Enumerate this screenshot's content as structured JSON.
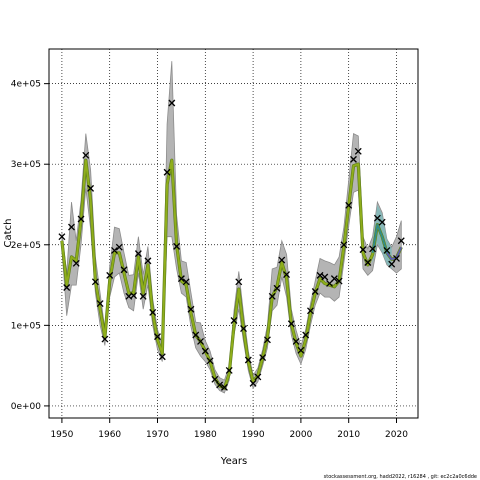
{
  "chart_data": {
    "type": "line",
    "xlabel": "Years",
    "ylabel": "Catch",
    "xlim": [
      1947.3,
      2024.5
    ],
    "ylim": [
      -15000,
      443000
    ],
    "xticks": [
      1950,
      1960,
      1970,
      1980,
      1990,
      2000,
      2010,
      2020
    ],
    "yticks": [
      0,
      100000,
      200000,
      300000,
      400000
    ],
    "ytick_labels": [
      "0e+00",
      "1e+05",
      "2e+05",
      "3e+05",
      "4e+05"
    ],
    "grid": true,
    "grid_style": "dotted",
    "colors": {
      "band": "#b4b4b4",
      "band_line": "#8c8c8c",
      "estimate": "#8fae1b",
      "estimate_shadow": "#5a7a1a",
      "recent_band": "#7fb8b8",
      "recent_line": "#2e8b8b",
      "forecast_line": "#5b5bb0",
      "observed": "#000000"
    },
    "years": [
      1950,
      1951,
      1952,
      1953,
      1954,
      1955,
      1956,
      1957,
      1958,
      1959,
      1960,
      1961,
      1962,
      1963,
      1964,
      1965,
      1966,
      1967,
      1968,
      1969,
      1970,
      1971,
      1972,
      1973,
      1974,
      1975,
      1976,
      1977,
      1978,
      1979,
      1980,
      1981,
      1982,
      1983,
      1984,
      1985,
      1986,
      1987,
      1988,
      1989,
      1990,
      1991,
      1992,
      1993,
      1994,
      1995,
      1996,
      1997,
      1998,
      1999,
      2000,
      2001,
      2002,
      2003,
      2004,
      2005,
      2006,
      2007,
      2008,
      2009,
      2010,
      2011,
      2012,
      2013,
      2014,
      2015,
      2016,
      2017,
      2018,
      2019,
      2020,
      2021
    ],
    "series": [
      {
        "role": "estimate",
        "values": [
          205000,
          150000,
          185000,
          180000,
          230000,
          305000,
          255000,
          155000,
          120000,
          85000,
          155000,
          190000,
          190000,
          165000,
          140000,
          140000,
          185000,
          140000,
          175000,
          115000,
          82000,
          65000,
          275000,
          305000,
          200000,
          155000,
          150000,
          115000,
          88000,
          80000,
          68000,
          55000,
          35000,
          25000,
          22000,
          40000,
          100000,
          145000,
          95000,
          55000,
          30000,
          38000,
          60000,
          85000,
          135000,
          148000,
          178000,
          158000,
          102000,
          78000,
          62000,
          82000,
          115000,
          140000,
          158000,
          152000,
          150000,
          148000,
          155000,
          198000,
          248000,
          298000,
          300000,
          190000,
          175000,
          188000,
          225000,
          210000,
          190000,
          182000,
          184000,
          197000
        ]
      },
      {
        "role": "upper_bound",
        "values": [
          215000,
          165000,
          253000,
          205000,
          255000,
          338000,
          293000,
          185000,
          140000,
          95000,
          173000,
          222000,
          220000,
          190000,
          162000,
          163000,
          210000,
          163000,
          198000,
          133000,
          95000,
          75000,
          350000,
          428000,
          237000,
          180000,
          178000,
          140000,
          104000,
          103000,
          81000,
          68000,
          45000,
          35000,
          32000,
          50000,
          118000,
          167000,
          115000,
          68000,
          38000,
          47000,
          70000,
          100000,
          170000,
          172000,
          205000,
          188000,
          120000,
          94000,
          74000,
          95000,
          127000,
          155000,
          183000,
          180000,
          178000,
          175000,
          185000,
          222000,
          280000,
          338000,
          335000,
          210000,
          195000,
          210000,
          253000,
          240000,
          207000,
          197000,
          210000,
          230000
        ]
      },
      {
        "role": "lower_bound",
        "values": [
          195000,
          112000,
          150000,
          150000,
          200000,
          270000,
          220000,
          140000,
          100000,
          75000,
          135000,
          160000,
          165000,
          140000,
          122000,
          118000,
          165000,
          120000,
          150000,
          100000,
          70000,
          55000,
          210000,
          210000,
          170000,
          140000,
          135000,
          98000,
          72000,
          62000,
          55000,
          45000,
          27000,
          19000,
          16000,
          32000,
          88000,
          120000,
          80000,
          44000,
          22000,
          30000,
          50000,
          72000,
          118000,
          125000,
          160000,
          135000,
          88000,
          65000,
          52000,
          70000,
          100000,
          125000,
          140000,
          135000,
          135000,
          130000,
          135000,
          178000,
          223000,
          265000,
          268000,
          170000,
          162000,
          168000,
          200000,
          190000,
          175000,
          170000,
          165000,
          170000
        ]
      },
      {
        "role": "observed",
        "marker": "x",
        "values": [
          210000,
          147000,
          222000,
          177000,
          232000,
          311000,
          270000,
          154000,
          127000,
          83000,
          162000,
          193000,
          197000,
          169000,
          136000,
          137000,
          189000,
          136000,
          180000,
          116000,
          86000,
          61000,
          290000,
          376000,
          198000,
          158000,
          154000,
          120000,
          88000,
          80000,
          68000,
          56000,
          33000,
          26000,
          23000,
          44000,
          106000,
          154000,
          96000,
          57000,
          28000,
          36000,
          60000,
          82000,
          136000,
          146000,
          181000,
          163000,
          102000,
          80000,
          69000,
          88000,
          118000,
          142000,
          162000,
          160000,
          152000,
          158000,
          155000,
          200000,
          249000,
          306000,
          316000,
          194000,
          178000,
          195000,
          233000,
          228000,
          193000,
          176000,
          183000,
          205000
        ]
      }
    ],
    "recent_segment": {
      "years": [
        2015,
        2016,
        2017,
        2018,
        2019
      ],
      "values": [
        190000,
        225000,
        210000,
        190000,
        182000
      ],
      "upper": [
        205000,
        250000,
        238000,
        207000,
        196000
      ],
      "lower": [
        176000,
        203000,
        190000,
        176000,
        170000
      ]
    },
    "forecast_segment": {
      "years": [
        2018,
        2019,
        2020,
        2021
      ],
      "values": [
        190000,
        182000,
        184000,
        197000
      ]
    },
    "footer": "stockassessment.org, hadd2022, r16284 , git: ec2c2a0c6dde"
  }
}
